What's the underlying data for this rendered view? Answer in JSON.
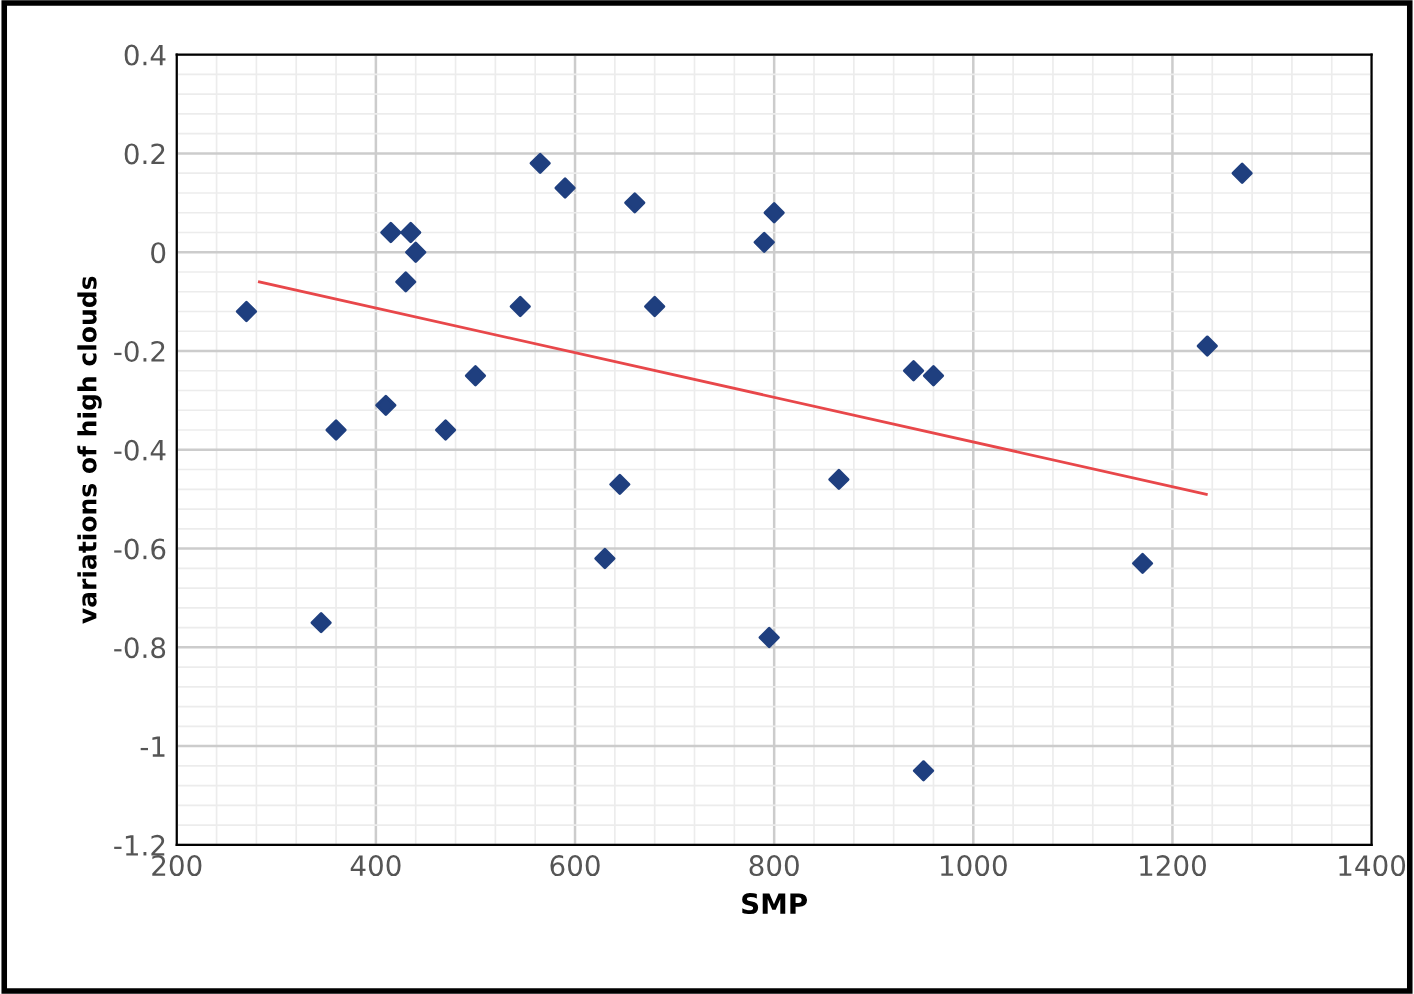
{
  "chart_data": {
    "type": "scatter",
    "xlabel": "SMP",
    "ylabel": "variations of high clouds",
    "xlim": [
      200,
      1400
    ],
    "xticks": [
      200,
      400,
      600,
      800,
      1000,
      1200,
      1400
    ],
    "ylim": [
      -1.2,
      0.4
    ],
    "yticks": [
      -1.2,
      -1,
      -0.8,
      -0.6,
      -0.4,
      -0.2,
      0,
      0.2,
      0.4
    ],
    "grid": true,
    "series": [
      {
        "marker": "diamond",
        "color": "#1f3f7f",
        "x": [
          270,
          345,
          360,
          410,
          415,
          435,
          430,
          440,
          470,
          500,
          545,
          565,
          590,
          630,
          645,
          660,
          680,
          790,
          800,
          795,
          865,
          940,
          960,
          950,
          1170,
          1235,
          1270
        ],
        "values": [
          -0.12,
          -0.75,
          -0.36,
          -0.31,
          0.04,
          0.04,
          -0.06,
          0,
          -0.36,
          -0.25,
          -0.11,
          0.18,
          0.13,
          -0.62,
          -0.47,
          0.1,
          -0.11,
          0.02,
          0.08,
          -0.78,
          -0.46,
          -0.24,
          -0.25,
          -1.05,
          -0.63,
          -0.19,
          0.16
        ]
      },
      {
        "type": "line",
        "color": "#e8474a",
        "x": [
          283,
          1234
        ],
        "values": [
          -0.06,
          -0.49
        ]
      }
    ]
  }
}
